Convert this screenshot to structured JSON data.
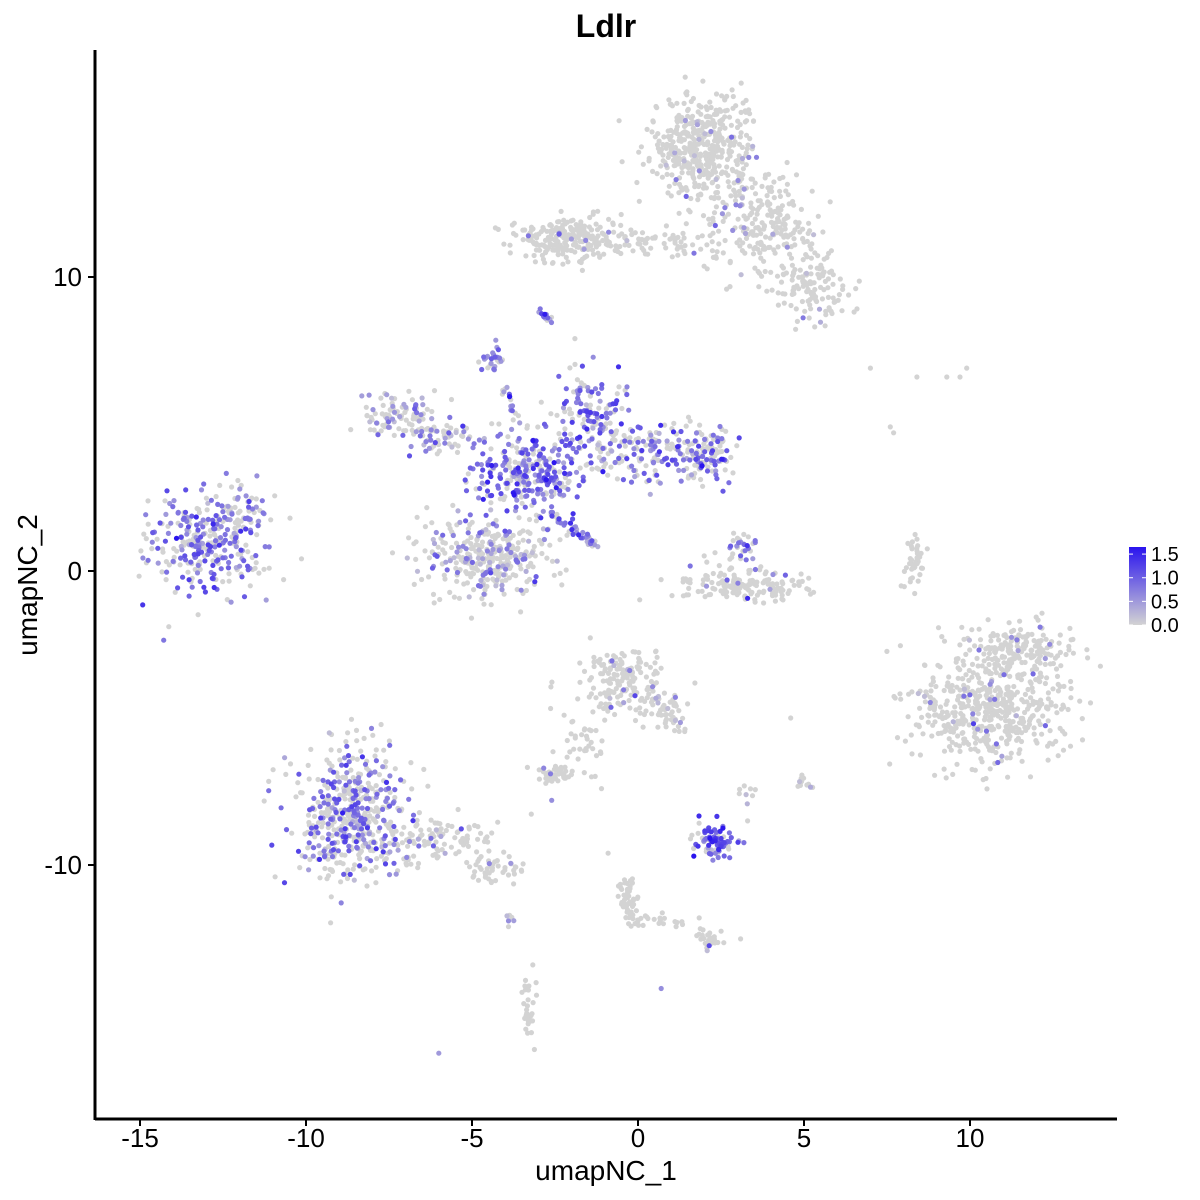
{
  "chart_data": {
    "type": "scatter",
    "title": "Ldlr",
    "xlabel": "umapNC_1",
    "ylabel": "umapNC_2",
    "xlim": [
      -16.3,
      14.3
    ],
    "ylim": [
      -18.4,
      17.8
    ],
    "x_ticks": [
      -15,
      -10,
      -5,
      0,
      5,
      10
    ],
    "x_tick_labels": [
      "-15",
      "-10",
      "-5",
      "0",
      "5",
      "10"
    ],
    "y_ticks": [
      -10,
      0,
      10
    ],
    "y_tick_labels": [
      "-10",
      "0",
      "10"
    ],
    "grid": false,
    "legend": {
      "position": "right",
      "type": "colorbar",
      "low_color": "#d3d3d3",
      "high_color": "#2a14ee",
      "range": [
        0,
        1.65
      ],
      "labels": [
        "1.5",
        "1.0",
        "0.5",
        "0.0"
      ],
      "values": [
        1.5,
        1.0,
        0.5,
        0.0
      ]
    },
    "clusters": [
      {
        "cx": -12.8,
        "cy": 1.0,
        "sx": 1.2,
        "sy": 1.0,
        "n": 320,
        "pos_frac": 0.55,
        "mean_expr": 0.85
      },
      {
        "cx": -11.8,
        "cy": 2.2,
        "sx": 0.4,
        "sy": 0.4,
        "n": 30,
        "pos_frac": 0.5,
        "mean_expr": 0.7
      },
      {
        "cx": -7.3,
        "cy": 5.3,
        "sx": 0.7,
        "sy": 0.5,
        "n": 90,
        "pos_frac": 0.3,
        "mean_expr": 0.6
      },
      {
        "cx": -5.9,
        "cy": 4.5,
        "sx": 0.6,
        "sy": 0.4,
        "n": 60,
        "pos_frac": 0.3,
        "mean_expr": 0.6
      },
      {
        "cx": -4.5,
        "cy": 0.5,
        "sx": 1.3,
        "sy": 0.9,
        "n": 340,
        "pos_frac": 0.3,
        "mean_expr": 0.6
      },
      {
        "cx": -3.3,
        "cy": 3.3,
        "sx": 1.0,
        "sy": 0.8,
        "n": 260,
        "pos_frac": 0.65,
        "mean_expr": 0.9
      },
      {
        "cx": -1.4,
        "cy": 5.2,
        "sx": 0.7,
        "sy": 0.9,
        "n": 140,
        "pos_frac": 0.6,
        "mean_expr": 0.9
      },
      {
        "cx": 0.3,
        "cy": 4.0,
        "sx": 1.0,
        "sy": 0.6,
        "n": 140,
        "pos_frac": 0.5,
        "mean_expr": 0.85
      },
      {
        "cx": 2.0,
        "cy": 4.0,
        "sx": 0.6,
        "sy": 0.6,
        "n": 110,
        "pos_frac": 0.4,
        "mean_expr": 0.9
      },
      {
        "cx": -4.4,
        "cy": 7.2,
        "sx": 0.25,
        "sy": 0.25,
        "n": 25,
        "pos_frac": 0.7,
        "mean_expr": 0.6
      },
      {
        "cx": -2.8,
        "cy": 8.7,
        "sx": 0.2,
        "sy": 0.2,
        "n": 14,
        "pos_frac": 0.7,
        "mean_expr": 0.6
      },
      {
        "cx": 3.2,
        "cy": -0.5,
        "sx": 1.3,
        "sy": 0.35,
        "n": 160,
        "pos_frac": 0.03,
        "mean_expr": 0.6
      },
      {
        "cx": 3.0,
        "cy": 0.8,
        "sx": 0.35,
        "sy": 0.35,
        "n": 30,
        "pos_frac": 0.4,
        "mean_expr": 0.8
      },
      {
        "cx": -2.0,
        "cy": 11.3,
        "sx": 1.0,
        "sy": 0.5,
        "n": 240,
        "pos_frac": 0.02,
        "mean_expr": 0.5
      },
      {
        "cx": 0.5,
        "cy": 11.1,
        "sx": 1.2,
        "sy": 0.3,
        "n": 60,
        "pos_frac": 0.02,
        "mean_expr": 0.5
      },
      {
        "cx": 1.9,
        "cy": 14.3,
        "sx": 0.9,
        "sy": 1.2,
        "n": 450,
        "pos_frac": 0.04,
        "mean_expr": 0.5
      },
      {
        "cx": 3.8,
        "cy": 11.8,
        "sx": 1.0,
        "sy": 1.0,
        "n": 220,
        "pos_frac": 0.05,
        "mean_expr": 0.5
      },
      {
        "cx": 5.3,
        "cy": 9.6,
        "sx": 0.7,
        "sy": 0.7,
        "n": 120,
        "pos_frac": 0.05,
        "mean_expr": 0.5
      },
      {
        "cx": 10.7,
        "cy": -4.6,
        "sx": 1.4,
        "sy": 1.2,
        "n": 520,
        "pos_frac": 0.04,
        "mean_expr": 0.6
      },
      {
        "cx": 11.5,
        "cy": -2.6,
        "sx": 1.1,
        "sy": 0.6,
        "n": 150,
        "pos_frac": 0.04,
        "mean_expr": 0.6
      },
      {
        "cx": 8.3,
        "cy": 0.2,
        "sx": 0.2,
        "sy": 0.7,
        "n": 40,
        "pos_frac": 0.0,
        "mean_expr": 0.5
      },
      {
        "cx": -8.7,
        "cy": -8.2,
        "sx": 1.0,
        "sy": 1.5,
        "n": 480,
        "pos_frac": 0.4,
        "mean_expr": 0.8
      },
      {
        "cx": -6.0,
        "cy": -9.2,
        "sx": 1.3,
        "sy": 0.5,
        "n": 120,
        "pos_frac": 0.1,
        "mean_expr": 0.6
      },
      {
        "cx": -4.3,
        "cy": -10.2,
        "sx": 0.6,
        "sy": 0.3,
        "n": 40,
        "pos_frac": 0.05,
        "mean_expr": 0.5
      },
      {
        "cx": -0.5,
        "cy": -3.7,
        "sx": 0.8,
        "sy": 0.7,
        "n": 160,
        "pos_frac": 0.05,
        "mean_expr": 0.5
      },
      {
        "cx": 0.8,
        "cy": -4.7,
        "sx": 0.5,
        "sy": 0.5,
        "n": 45,
        "pos_frac": 0.08,
        "mean_expr": 0.5
      },
      {
        "cx": -1.6,
        "cy": -5.8,
        "sx": 0.5,
        "sy": 0.6,
        "n": 35,
        "pos_frac": 0.0,
        "mean_expr": 0.5
      },
      {
        "cx": -2.5,
        "cy": -6.9,
        "sx": 0.4,
        "sy": 0.2,
        "n": 50,
        "pos_frac": 0.03,
        "mean_expr": 0.5
      },
      {
        "cx": 2.3,
        "cy": -9.2,
        "sx": 0.35,
        "sy": 0.35,
        "n": 90,
        "pos_frac": 0.7,
        "mean_expr": 1.1
      },
      {
        "cx": 3.2,
        "cy": -7.5,
        "sx": 0.2,
        "sy": 0.2,
        "n": 8,
        "pos_frac": 0.1,
        "mean_expr": 0.5
      },
      {
        "cx": 5.0,
        "cy": -7.2,
        "sx": 0.15,
        "sy": 0.2,
        "n": 14,
        "pos_frac": 0.1,
        "mean_expr": 0.5
      },
      {
        "cx": -0.3,
        "cy": -11.2,
        "sx": 0.2,
        "sy": 0.6,
        "n": 35,
        "pos_frac": 0.0,
        "mean_expr": 0.5
      },
      {
        "cx": 0.5,
        "cy": -11.8,
        "sx": 0.5,
        "sy": 0.2,
        "n": 15,
        "pos_frac": 0.0,
        "mean_expr": 0.5
      },
      {
        "cx": 2.3,
        "cy": -12.5,
        "sx": 0.3,
        "sy": 0.2,
        "n": 20,
        "pos_frac": 0.1,
        "mean_expr": 0.5
      },
      {
        "cx": -3.3,
        "cy": -14.9,
        "sx": 0.15,
        "sy": 0.6,
        "n": 30,
        "pos_frac": 0.03,
        "mean_expr": 0.5
      },
      {
        "cx": -3.8,
        "cy": -11.8,
        "sx": 0.1,
        "sy": 0.1,
        "n": 4,
        "pos_frac": 0.5,
        "mean_expr": 0.6
      }
    ],
    "streaks": [
      {
        "x0": -4.5,
        "y0": 7.2,
        "x1": -2.2,
        "y1": 2.3,
        "n": 40,
        "pos_frac": 0.7,
        "mean_expr": 0.8
      },
      {
        "x0": -2.6,
        "y0": 2.0,
        "x1": -1.2,
        "y1": 0.8,
        "n": 45,
        "pos_frac": 0.8,
        "mean_expr": 0.8
      },
      {
        "x0": 3.0,
        "y0": 12.2,
        "x1": 3.3,
        "y1": 16.0,
        "n": 20,
        "pos_frac": 0.05,
        "mean_expr": 0.5
      },
      {
        "x0": 1.0,
        "y0": -4.8,
        "x1": 1.4,
        "y1": -5.6,
        "n": 12,
        "pos_frac": 0.1,
        "mean_expr": 0.5
      },
      {
        "x0": -0.5,
        "y0": -10.5,
        "x1": -0.1,
        "y1": -12.0,
        "n": 15,
        "pos_frac": 0.0,
        "mean_expr": 0.5
      },
      {
        "x0": 1.2,
        "y0": -12.0,
        "x1": 2.4,
        "y1": -12.6,
        "n": 10,
        "pos_frac": 0.1,
        "mean_expr": 0.5
      },
      {
        "x0": 8.5,
        "y0": -4.0,
        "x1": 9.2,
        "y1": -5.0,
        "n": 18,
        "pos_frac": 0.1,
        "mean_expr": 0.5
      }
    ],
    "singletons": [
      {
        "x": 7.0,
        "y": 6.9,
        "v": 0
      },
      {
        "x": 8.4,
        "y": 6.6,
        "v": 0
      },
      {
        "x": 9.3,
        "y": 6.6,
        "v": 0
      },
      {
        "x": 9.9,
        "y": 6.9,
        "v": 0
      },
      {
        "x": 9.7,
        "y": 6.6,
        "v": 0
      },
      {
        "x": 7.6,
        "y": 4.9,
        "v": 0
      },
      {
        "x": 7.7,
        "y": 4.7,
        "v": 0
      },
      {
        "x": 4.6,
        "y": -5.0,
        "v": 0
      },
      {
        "x": -1.4,
        "y": -7.0,
        "v": 0
      },
      {
        "x": -1.1,
        "y": -7.4,
        "v": 0
      },
      {
        "x": -0.9,
        "y": -9.6,
        "v": 0
      },
      {
        "x": 0.7,
        "y": -14.2,
        "v": 0.6
      },
      {
        "x": -6.0,
        "y": -16.4,
        "v": 0.5
      },
      {
        "x": -3.9,
        "y": -11.9,
        "v": 0.6
      },
      {
        "x": -2.6,
        "y": -7.8,
        "v": 0.6
      },
      {
        "x": -3.3,
        "y": 11.4,
        "v": 0.8
      },
      {
        "x": -3.9,
        "y": -12.1,
        "v": 0
      },
      {
        "x": 3.3,
        "y": -8.5,
        "v": 0
      }
    ]
  }
}
